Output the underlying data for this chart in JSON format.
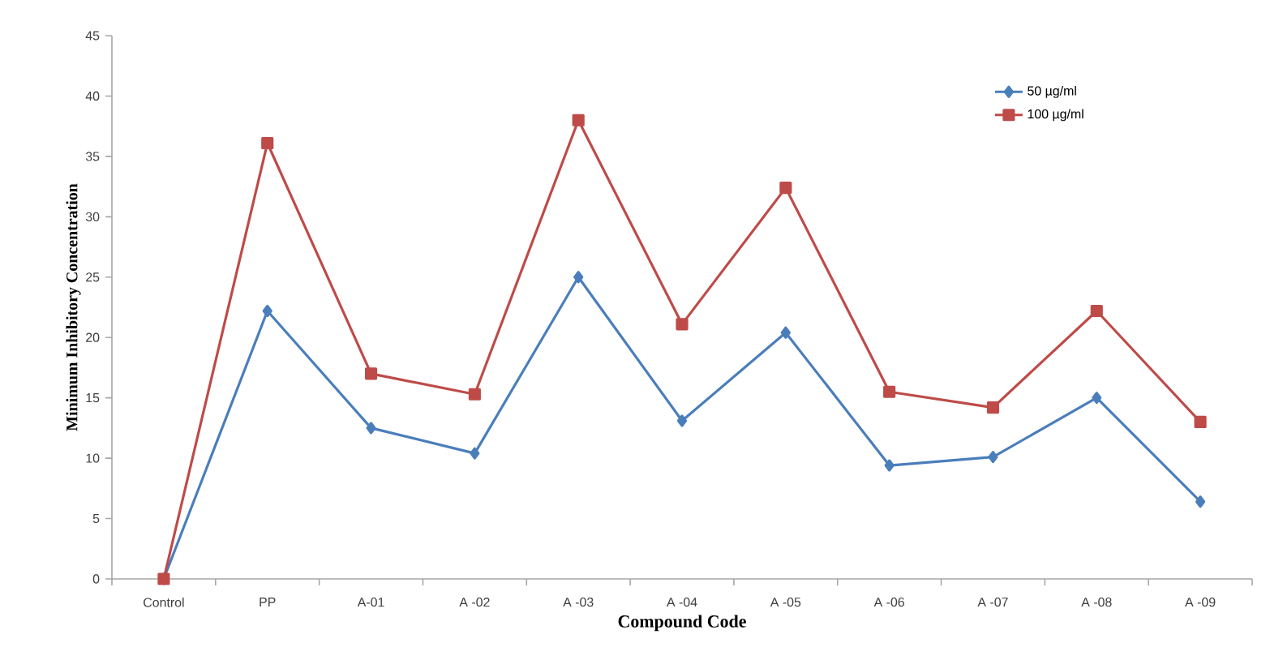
{
  "chart_data": {
    "type": "line",
    "xlabel": "Compound Code",
    "ylabel": "Minimum Inhibitory Concentration",
    "categories": [
      "Control",
      "PP",
      "A-01",
      "A -02",
      "A -03",
      "A -04",
      "A -05",
      "A -06",
      "A -07",
      "A -08",
      "A -09"
    ],
    "series": [
      {
        "name": "50 µg/ml",
        "color": "#4a7ebb",
        "marker": "diamond",
        "values": [
          0,
          22.2,
          12.5,
          10.4,
          25,
          13.1,
          20.4,
          9.4,
          10.1,
          15,
          6.4
        ]
      },
      {
        "name": "100 µg/ml",
        "color": "#be4b48",
        "marker": "square",
        "values": [
          0,
          36.1,
          17,
          15.3,
          38,
          21.1,
          32.4,
          15.5,
          14.2,
          22.2,
          13
        ]
      }
    ],
    "ylim": [
      0,
      45
    ],
    "yticks": [
      0,
      5,
      10,
      15,
      20,
      25,
      30,
      35,
      40,
      45
    ],
    "grid": false,
    "legend": "top right",
    "line_style": "solid"
  }
}
